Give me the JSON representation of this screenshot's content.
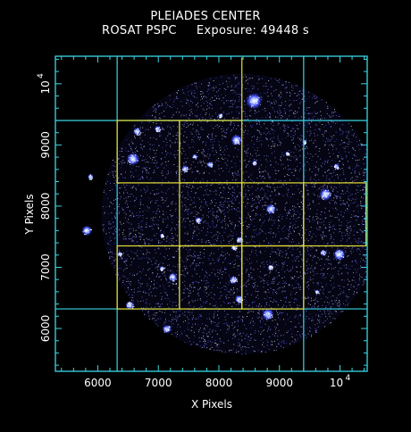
{
  "title": "PLEIADES CENTER",
  "subtitle": {
    "instrument": "ROSAT PSPC",
    "exposure": "Exposure: 49448 s"
  },
  "axes": {
    "xlabel": "X Pixels",
    "ylabel": "Y Pixels",
    "xlim": [
      5300,
      10450
    ],
    "ylim": [
      5300,
      10450
    ],
    "x_ticks": [
      {
        "value": 6000,
        "label": "6000"
      },
      {
        "value": 7000,
        "label": "7000"
      },
      {
        "value": 8000,
        "label": "8000"
      },
      {
        "value": 9000,
        "label": "9000"
      }
    ],
    "x_power_tick": {
      "value": 10000,
      "base": "10",
      "exp": "4"
    },
    "y_ticks": [
      {
        "value": 6000,
        "label": "6000"
      },
      {
        "value": 7000,
        "label": "7000"
      },
      {
        "value": 8000,
        "label": "8000"
      },
      {
        "value": 9000,
        "label": "9000"
      }
    ],
    "y_power_tick": {
      "value": 10000,
      "base": "10",
      "exp": "4"
    }
  },
  "field": {
    "center": [
      8380,
      7870
    ],
    "radius": 2320
  },
  "grid": {
    "cyan_color": "#3ad7e6",
    "yellow_color": "#e6df34",
    "cyan_lines": {
      "vertical": [
        6320,
        9400
      ],
      "horizontal": [
        6320,
        9400
      ]
    },
    "yellow_rects": [
      [
        6320,
        8380,
        7350,
        9400
      ],
      [
        7350,
        8380,
        8380,
        9400
      ],
      [
        7350,
        7350,
        8380,
        8380
      ],
      [
        8380,
        7350,
        9400,
        8380
      ],
      [
        9400,
        7350,
        10430,
        8380
      ],
      [
        6320,
        6320,
        7350,
        7350
      ],
      [
        7350,
        6320,
        8380,
        7350
      ],
      [
        8380,
        6320,
        9400,
        7350
      ],
      [
        8380,
        9400,
        8380,
        10430
      ]
    ]
  },
  "sources": [
    {
      "x": 8580,
      "y": 9720,
      "r": 110
    },
    {
      "x": 8290,
      "y": 9080,
      "r": 75
    },
    {
      "x": 6580,
      "y": 8770,
      "r": 85
    },
    {
      "x": 6650,
      "y": 9220,
      "r": 55
    },
    {
      "x": 6990,
      "y": 9260,
      "r": 45
    },
    {
      "x": 7440,
      "y": 8610,
      "r": 45
    },
    {
      "x": 7600,
      "y": 8810,
      "r": 35
    },
    {
      "x": 7850,
      "y": 8680,
      "r": 40
    },
    {
      "x": 8590,
      "y": 8710,
      "r": 35
    },
    {
      "x": 7660,
      "y": 7770,
      "r": 45
    },
    {
      "x": 8860,
      "y": 7950,
      "r": 70
    },
    {
      "x": 8340,
      "y": 7450,
      "r": 45
    },
    {
      "x": 8250,
      "y": 7320,
      "r": 40
    },
    {
      "x": 7240,
      "y": 6840,
      "r": 60
    },
    {
      "x": 7060,
      "y": 6980,
      "r": 35
    },
    {
      "x": 8240,
      "y": 6790,
      "r": 55
    },
    {
      "x": 8330,
      "y": 6480,
      "r": 55
    },
    {
      "x": 8810,
      "y": 6230,
      "r": 80
    },
    {
      "x": 7140,
      "y": 5990,
      "r": 60
    },
    {
      "x": 6530,
      "y": 6380,
      "r": 60
    },
    {
      "x": 5820,
      "y": 7600,
      "r": 70
    },
    {
      "x": 5880,
      "y": 8480,
      "r": 40
    },
    {
      "x": 9760,
      "y": 8190,
      "r": 85
    },
    {
      "x": 9990,
      "y": 7210,
      "r": 80
    },
    {
      "x": 9720,
      "y": 7240,
      "r": 40
    },
    {
      "x": 9940,
      "y": 8650,
      "r": 40
    },
    {
      "x": 9130,
      "y": 8860,
      "r": 30
    },
    {
      "x": 9410,
      "y": 9050,
      "r": 30
    },
    {
      "x": 6360,
      "y": 7220,
      "r": 30
    },
    {
      "x": 8850,
      "y": 7000,
      "r": 35
    },
    {
      "x": 9620,
      "y": 6600,
      "r": 30
    },
    {
      "x": 8020,
      "y": 9480,
      "r": 30
    },
    {
      "x": 7060,
      "y": 7520,
      "r": 30
    }
  ]
}
